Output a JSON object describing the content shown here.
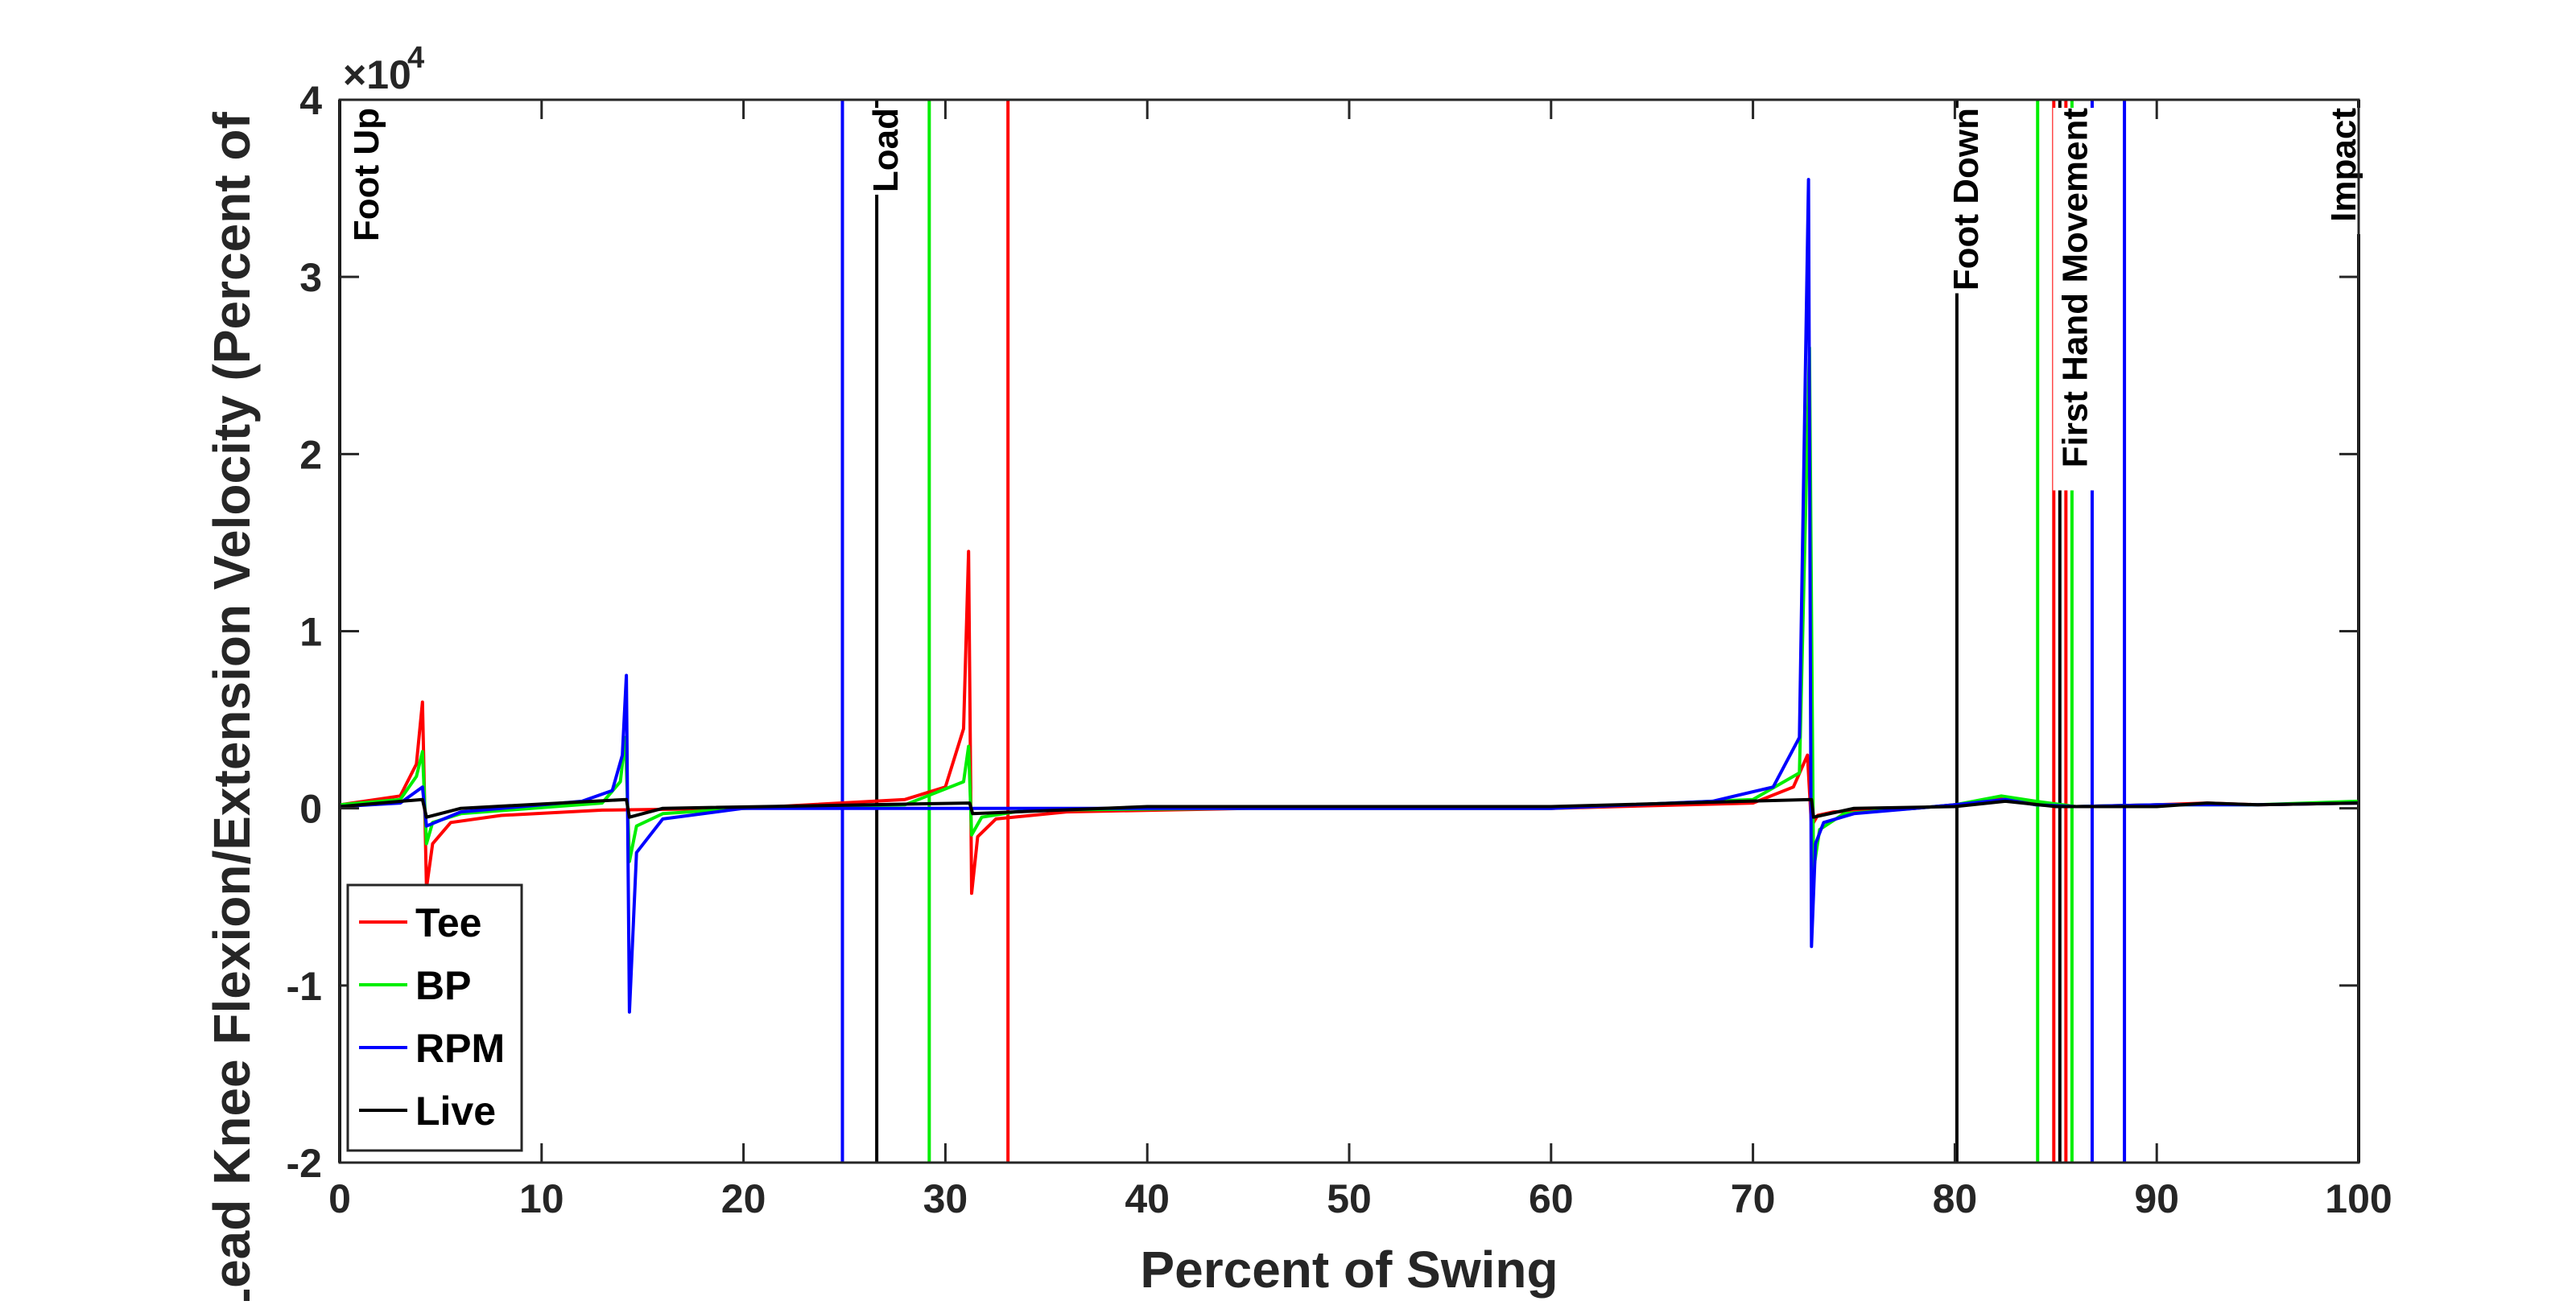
{
  "chart_data": {
    "type": "line",
    "title": "",
    "xlabel": "Percent of Swing",
    "ylabel": "Lead Knee Flexion/Extension Velocity (Percent of",
    "xlim": [
      0,
      100
    ],
    "ylim": [
      -2,
      4
    ],
    "y_scale_label": "×10",
    "y_scale_exponent": "4",
    "x_ticks": [
      0,
      10,
      20,
      30,
      40,
      50,
      60,
      70,
      80,
      90,
      100
    ],
    "x_tick_labels": [
      "0",
      "10",
      "20",
      "30",
      "40",
      "50",
      "60",
      "70",
      "80",
      "90",
      "100"
    ],
    "y_ticks": [
      -2,
      -1,
      0,
      1,
      2,
      3,
      4
    ],
    "y_tick_labels": [
      "-2",
      "-1",
      "0",
      "1",
      "2",
      "3",
      "4"
    ],
    "grid": false,
    "legend_position": "bottom-left",
    "series": [
      {
        "name": "Tee",
        "color": "#ff0000",
        "x": [
          0,
          3,
          3.8,
          4.1,
          4.3,
          4.6,
          5.5,
          8,
          13,
          20,
          28,
          30,
          30.9,
          31.15,
          31.3,
          31.6,
          32.5,
          36,
          45,
          60,
          70,
          72,
          72.7,
          72.9,
          73.2,
          74,
          78,
          80,
          82.5,
          84,
          86,
          90,
          92.5,
          95,
          100
        ],
        "y": [
          0.02,
          0.07,
          0.25,
          0.6,
          -0.45,
          -0.2,
          -0.08,
          -0.04,
          -0.01,
          0.0,
          0.05,
          0.12,
          0.45,
          1.45,
          -0.48,
          -0.16,
          -0.06,
          -0.02,
          0.0,
          0.0,
          0.03,
          0.12,
          0.3,
          -0.1,
          -0.04,
          -0.02,
          0.0,
          0.02,
          0.06,
          0.03,
          0.01,
          0.02,
          0.03,
          0.02,
          0.03
        ]
      },
      {
        "name": "BP",
        "color": "#00ee00",
        "x": [
          0,
          3,
          3.8,
          4.1,
          4.3,
          4.6,
          6,
          13,
          13.9,
          14.15,
          14.35,
          14.7,
          16,
          20,
          28,
          30.9,
          31.15,
          31.3,
          31.8,
          34,
          45,
          60,
          70,
          72.3,
          72.8,
          73.0,
          73.3,
          74.5,
          78,
          80,
          82.3,
          84,
          86,
          90,
          95,
          100
        ],
        "y": [
          0.02,
          0.05,
          0.18,
          0.32,
          -0.2,
          -0.08,
          -0.03,
          0.03,
          0.15,
          0.4,
          -0.3,
          -0.1,
          -0.03,
          0.0,
          0.02,
          0.15,
          0.35,
          -0.15,
          -0.05,
          -0.01,
          0.0,
          0.0,
          0.05,
          0.2,
          2.6,
          -0.35,
          -0.12,
          -0.03,
          0.0,
          0.02,
          0.07,
          0.04,
          0.01,
          0.02,
          0.02,
          0.04
        ]
      },
      {
        "name": "RPM",
        "color": "#0000ff",
        "x": [
          0,
          3,
          4.1,
          4.3,
          6,
          12,
          13.5,
          14.0,
          14.2,
          14.35,
          14.7,
          16,
          20,
          26,
          35,
          45,
          60,
          68,
          71,
          72.3,
          72.75,
          72.9,
          73.1,
          73.5,
          75,
          78,
          80,
          82.5,
          84,
          86,
          90,
          95,
          100
        ],
        "y": [
          0.01,
          0.03,
          0.12,
          -0.1,
          -0.02,
          0.04,
          0.1,
          0.3,
          0.75,
          -1.15,
          -0.25,
          -0.06,
          0.0,
          0.0,
          0.0,
          0.0,
          0.0,
          0.04,
          0.12,
          0.4,
          3.55,
          -0.78,
          -0.2,
          -0.08,
          -0.03,
          0.0,
          0.02,
          0.05,
          0.02,
          0.01,
          0.02,
          0.02,
          0.03
        ]
      },
      {
        "name": "Live",
        "color": "#000000",
        "x": [
          0,
          4.1,
          4.3,
          6,
          14.2,
          14.35,
          16,
          31.2,
          31.35,
          40,
          60,
          72.9,
          73.0,
          75,
          80,
          82.5,
          85,
          90,
          92.5,
          95,
          100
        ],
        "y": [
          0.01,
          0.05,
          -0.05,
          0.0,
          0.05,
          -0.05,
          0.0,
          0.03,
          -0.03,
          0.01,
          0.01,
          0.05,
          -0.05,
          0.0,
          0.01,
          0.04,
          0.01,
          0.01,
          0.03,
          0.02,
          0.03
        ]
      }
    ],
    "event_lines": [
      {
        "label": "Foot Up",
        "color": "#000000",
        "x": 0
      },
      {
        "label": "",
        "color": "#0000ff",
        "x": 24.9
      },
      {
        "label": "Load",
        "color": "#000000",
        "x": 26.6
      },
      {
        "label": "",
        "color": "#00ee00",
        "x": 29.2
      },
      {
        "label": "",
        "color": "#ff0000",
        "x": 33.1
      },
      {
        "label": "Foot Down",
        "color": "#000000",
        "x": 80.1
      },
      {
        "label": "",
        "color": "#00ee00",
        "x": 84.1
      },
      {
        "label": "",
        "color": "#ff0000",
        "x": 84.9
      },
      {
        "label": "",
        "color": "#000000",
        "x": 85.2
      },
      {
        "label": "First Hand Movement",
        "color": "#ff0000",
        "x": 85.5
      },
      {
        "label": "",
        "color": "#00ee00",
        "x": 85.8
      },
      {
        "label": "",
        "color": "#0000ff",
        "x": 86.8
      },
      {
        "label": "",
        "color": "#0000ff",
        "x": 88.4
      },
      {
        "label": "Impact",
        "color": "#000000",
        "x": 100
      }
    ]
  }
}
